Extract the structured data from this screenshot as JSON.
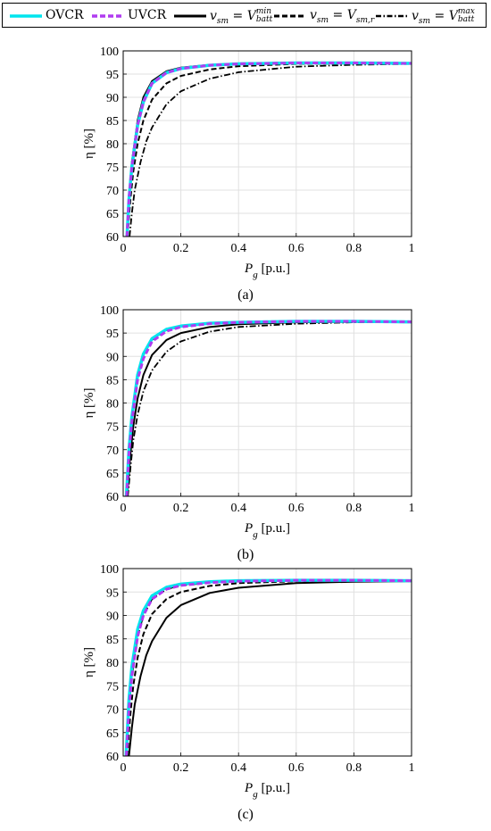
{
  "legend": {
    "ovcr": "OVCR",
    "uvcr": "UVCR",
    "vmin": {
      "lhs": "v",
      "lhs_sub": "sm",
      "eq": " = ",
      "rhs": "V",
      "rhs_sub": "batt",
      "rhs_sup": "min"
    },
    "vr": {
      "lhs": "v",
      "lhs_sub": "sm",
      "eq": " = ",
      "rhs": "V",
      "rhs_sub": "sm,r"
    },
    "vmax": {
      "lhs": "v",
      "lhs_sub": "sm",
      "eq": " = ",
      "rhs": "V",
      "rhs_sub": "batt",
      "rhs_sup": "max"
    }
  },
  "colors": {
    "ovcr": "#00e5ee",
    "uvcr": "#b03cf0",
    "others": "#000000",
    "grid": "#e0e0e0"
  },
  "chart_data": [
    {
      "type": "line",
      "caption": "(a)",
      "xlabel": "P",
      "xlabel_sub": "g",
      "xlabel_unit": " [p.u.]",
      "ylabel": "η [%]",
      "xlim": [
        0,
        1
      ],
      "ylim": [
        60,
        100
      ],
      "xticks": [
        "0",
        "0.2",
        "0.4",
        "0.6",
        "0.8",
        "1"
      ],
      "yticks": [
        "60",
        "65",
        "70",
        "75",
        "80",
        "85",
        "90",
        "95",
        "100"
      ],
      "grid": true,
      "series": [
        {
          "name": "OVCR",
          "points": [
            [
              0.013,
              60
            ],
            [
              0.02,
              68
            ],
            [
              0.03,
              75
            ],
            [
              0.05,
              84
            ],
            [
              0.07,
              89
            ],
            [
              0.1,
              93
            ],
            [
              0.15,
              95.3
            ],
            [
              0.2,
              96.2
            ],
            [
              0.3,
              96.9
            ],
            [
              0.4,
              97.2
            ],
            [
              0.6,
              97.4
            ],
            [
              0.8,
              97.4
            ],
            [
              1,
              97.3
            ]
          ]
        },
        {
          "name": "UVCR",
          "points": [
            [
              0.013,
              60
            ],
            [
              0.02,
              68
            ],
            [
              0.03,
              75
            ],
            [
              0.05,
              84
            ],
            [
              0.07,
              89
            ],
            [
              0.1,
              93
            ],
            [
              0.15,
              95.3
            ],
            [
              0.2,
              96.2
            ],
            [
              0.3,
              96.9
            ],
            [
              0.4,
              97.2
            ],
            [
              0.6,
              97.4
            ],
            [
              0.8,
              97.4
            ],
            [
              1,
              97.3
            ]
          ]
        },
        {
          "name": "v_sm = V_batt^min",
          "points": [
            [
              0.012,
              60
            ],
            [
              0.02,
              69
            ],
            [
              0.03,
              76
            ],
            [
              0.05,
              85
            ],
            [
              0.07,
              90
            ],
            [
              0.1,
              93.5
            ],
            [
              0.15,
              95.6
            ],
            [
              0.2,
              96.4
            ],
            [
              0.3,
              97
            ],
            [
              0.4,
              97.3
            ],
            [
              0.6,
              97.5
            ],
            [
              0.8,
              97.5
            ],
            [
              1,
              97.3
            ]
          ]
        },
        {
          "name": "v_sm = V_sm,r",
          "points": [
            [
              0.015,
              60
            ],
            [
              0.025,
              68
            ],
            [
              0.035,
              74
            ],
            [
              0.05,
              80
            ],
            [
              0.07,
              85
            ],
            [
              0.1,
              89.5
            ],
            [
              0.15,
              93
            ],
            [
              0.2,
              94.6
            ],
            [
              0.3,
              96
            ],
            [
              0.4,
              96.7
            ],
            [
              0.6,
              97.2
            ],
            [
              0.8,
              97.3
            ],
            [
              1,
              97.3
            ]
          ]
        },
        {
          "name": "v_sm = V_batt^max",
          "points": [
            [
              0.022,
              60
            ],
            [
              0.03,
              65
            ],
            [
              0.04,
              70
            ],
            [
              0.06,
              76
            ],
            [
              0.08,
              80.5
            ],
            [
              0.1,
              83.5
            ],
            [
              0.15,
              88.5
            ],
            [
              0.2,
              91.3
            ],
            [
              0.3,
              94
            ],
            [
              0.4,
              95.4
            ],
            [
              0.6,
              96.6
            ],
            [
              0.8,
              97
            ],
            [
              1,
              97.2
            ]
          ]
        }
      ]
    },
    {
      "type": "line",
      "caption": "(b)",
      "xlabel": "P",
      "xlabel_sub": "g",
      "xlabel_unit": " [p.u.]",
      "ylabel": "η [%]",
      "xlim": [
        0,
        1
      ],
      "ylim": [
        60,
        100
      ],
      "xticks": [
        "0",
        "0.2",
        "0.4",
        "0.6",
        "0.8",
        "1"
      ],
      "yticks": [
        "60",
        "65",
        "70",
        "75",
        "80",
        "85",
        "90",
        "95",
        "100"
      ],
      "grid": true,
      "series": [
        {
          "name": "OVCR",
          "points": [
            [
              0.011,
              60
            ],
            [
              0.02,
              70
            ],
            [
              0.03,
              77
            ],
            [
              0.05,
              86
            ],
            [
              0.07,
              90.5
            ],
            [
              0.1,
              93.8
            ],
            [
              0.15,
              95.8
            ],
            [
              0.2,
              96.5
            ],
            [
              0.3,
              97.1
            ],
            [
              0.4,
              97.3
            ],
            [
              0.6,
              97.5
            ],
            [
              0.8,
              97.5
            ],
            [
              1,
              97.4
            ]
          ]
        },
        {
          "name": "UVCR",
          "points": [
            [
              0.012,
              60
            ],
            [
              0.02,
              69
            ],
            [
              0.03,
              76
            ],
            [
              0.05,
              85
            ],
            [
              0.07,
              89.5
            ],
            [
              0.1,
              93.2
            ],
            [
              0.15,
              95.4
            ],
            [
              0.2,
              96.3
            ],
            [
              0.3,
              97
            ],
            [
              0.4,
              97.3
            ],
            [
              0.6,
              97.5
            ],
            [
              0.8,
              97.5
            ],
            [
              1,
              97.4
            ]
          ]
        },
        {
          "name": "v_sm = V_batt^min",
          "points": [
            [
              0.014,
              60
            ],
            [
              0.025,
              69
            ],
            [
              0.035,
              75
            ],
            [
              0.05,
              81
            ],
            [
              0.07,
              86
            ],
            [
              0.1,
              90.3
            ],
            [
              0.15,
              93.5
            ],
            [
              0.2,
              95
            ],
            [
              0.3,
              96.3
            ],
            [
              0.4,
              96.9
            ],
            [
              0.6,
              97.3
            ],
            [
              0.8,
              97.4
            ],
            [
              1,
              97.3
            ]
          ]
        },
        {
          "name": "v_sm = V_sm,r",
          "points": [
            [
              0.011,
              60
            ],
            [
              0.02,
              70
            ],
            [
              0.03,
              77
            ],
            [
              0.05,
              85.5
            ],
            [
              0.07,
              90
            ],
            [
              0.1,
              93.5
            ],
            [
              0.15,
              95.6
            ],
            [
              0.2,
              96.4
            ],
            [
              0.3,
              97
            ],
            [
              0.4,
              97.3
            ],
            [
              0.6,
              97.5
            ],
            [
              0.8,
              97.5
            ],
            [
              1,
              97.4
            ]
          ]
        },
        {
          "name": "v_sm = V_batt^max",
          "points": [
            [
              0.016,
              60
            ],
            [
              0.025,
              66
            ],
            [
              0.035,
              72
            ],
            [
              0.05,
              77.5
            ],
            [
              0.07,
              82.5
            ],
            [
              0.1,
              87
            ],
            [
              0.15,
              91
            ],
            [
              0.2,
              93.2
            ],
            [
              0.3,
              95.3
            ],
            [
              0.4,
              96.3
            ],
            [
              0.6,
              97
            ],
            [
              0.8,
              97.3
            ],
            [
              1,
              97.3
            ]
          ]
        }
      ]
    },
    {
      "type": "line",
      "caption": "(c)",
      "xlabel": "P",
      "xlabel_sub": "g",
      "xlabel_unit": " [p.u.]",
      "ylabel": "η [%]",
      "xlim": [
        0,
        1
      ],
      "ylim": [
        60,
        100
      ],
      "xticks": [
        "0",
        "0.2",
        "0.4",
        "0.6",
        "0.8",
        "1"
      ],
      "yticks": [
        "60",
        "65",
        "70",
        "75",
        "80",
        "85",
        "90",
        "95",
        "100"
      ],
      "grid": true,
      "series": [
        {
          "name": "OVCR",
          "points": [
            [
              0.01,
              60
            ],
            [
              0.02,
              72
            ],
            [
              0.03,
              79
            ],
            [
              0.05,
              87
            ],
            [
              0.07,
              91
            ],
            [
              0.1,
              94.2
            ],
            [
              0.15,
              96
            ],
            [
              0.2,
              96.7
            ],
            [
              0.3,
              97.2
            ],
            [
              0.4,
              97.4
            ],
            [
              0.6,
              97.5
            ],
            [
              0.8,
              97.5
            ],
            [
              1,
              97.4
            ]
          ]
        },
        {
          "name": "UVCR",
          "points": [
            [
              0.011,
              60
            ],
            [
              0.02,
              70
            ],
            [
              0.03,
              77
            ],
            [
              0.05,
              85.5
            ],
            [
              0.07,
              90
            ],
            [
              0.1,
              93.5
            ],
            [
              0.15,
              95.6
            ],
            [
              0.2,
              96.4
            ],
            [
              0.3,
              97
            ],
            [
              0.4,
              97.3
            ],
            [
              0.6,
              97.5
            ],
            [
              0.8,
              97.5
            ],
            [
              1,
              97.4
            ]
          ]
        },
        {
          "name": "v_sm = V_batt^min",
          "points": [
            [
              0.02,
              60
            ],
            [
              0.03,
              66
            ],
            [
              0.04,
              71
            ],
            [
              0.06,
              77
            ],
            [
              0.08,
              81.5
            ],
            [
              0.1,
              84.5
            ],
            [
              0.15,
              89.5
            ],
            [
              0.2,
              92.2
            ],
            [
              0.3,
              94.8
            ],
            [
              0.4,
              95.9
            ],
            [
              0.6,
              96.9
            ],
            [
              0.8,
              97.2
            ],
            [
              1,
              97.3
            ]
          ]
        },
        {
          "name": "v_sm = V_sm,r",
          "points": [
            [
              0.014,
              60
            ],
            [
              0.025,
              69
            ],
            [
              0.035,
              75
            ],
            [
              0.05,
              81
            ],
            [
              0.07,
              86
            ],
            [
              0.1,
              90.3
            ],
            [
              0.15,
              93.5
            ],
            [
              0.2,
              95
            ],
            [
              0.3,
              96.3
            ],
            [
              0.4,
              96.9
            ],
            [
              0.6,
              97.3
            ],
            [
              0.8,
              97.4
            ],
            [
              1,
              97.3
            ]
          ]
        },
        {
          "name": "v_sm = V_batt^max",
          "points": [
            [
              0.011,
              60
            ],
            [
              0.02,
              70
            ],
            [
              0.03,
              77
            ],
            [
              0.05,
              85.5
            ],
            [
              0.07,
              90
            ],
            [
              0.1,
              93.5
            ],
            [
              0.15,
              95.6
            ],
            [
              0.2,
              96.4
            ],
            [
              0.3,
              97
            ],
            [
              0.4,
              97.3
            ],
            [
              0.6,
              97.5
            ],
            [
              0.8,
              97.5
            ],
            [
              1,
              97.4
            ]
          ]
        }
      ]
    }
  ]
}
